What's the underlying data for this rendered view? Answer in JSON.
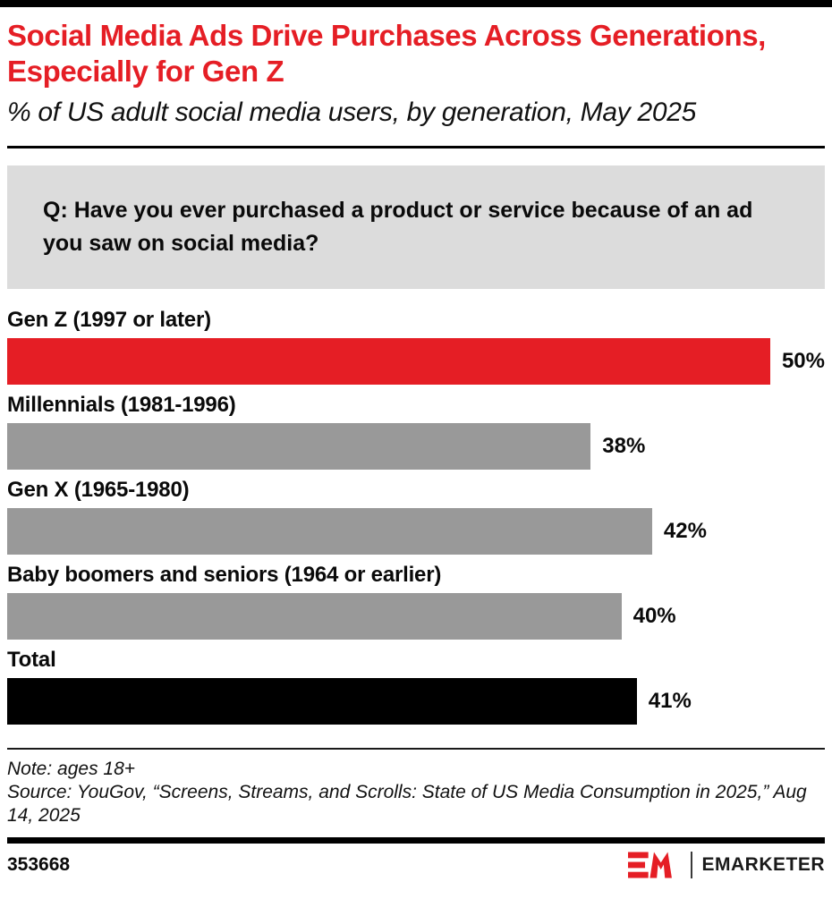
{
  "header": {
    "title": "Social Media Ads Drive Purchases Across Generations, Especially for Gen Z",
    "subtitle": "% of US adult social media users, by generation, May 2025"
  },
  "question": "Q: Have you ever purchased a product or service because of an ad you saw on social media?",
  "chart_data": {
    "type": "bar",
    "orientation": "horizontal",
    "title": "Social Media Ads Drive Purchases Across Generations, Especially for Gen Z",
    "subtitle": "% of US adult social media users, by generation, May 2025",
    "question": "Q: Have you ever purchased a product or service because of an ad you saw on social media?",
    "categories": [
      "Gen Z (1997 or later)",
      "Millennials (1981-1996)",
      "Gen X (1965-1980)",
      "Baby boomers and seniors (1964 or earlier)",
      "Total"
    ],
    "values": [
      50,
      38,
      42,
      40,
      41
    ],
    "value_labels": [
      "50%",
      "38%",
      "42%",
      "40%",
      "41%"
    ],
    "bar_colors": [
      "#e51e25",
      "#999999",
      "#999999",
      "#999999",
      "#000000"
    ],
    "value_suffix": "%",
    "xlim": [
      0,
      53.5
    ],
    "grid": false,
    "legend": "none",
    "xlabel": "",
    "ylabel": ""
  },
  "footnote": {
    "note": "Note: ages 18+",
    "source": "Source: YouGov, “Screens, Streams, and Scrolls: State of US Media Consumption in 2025,” Aug 14, 2025"
  },
  "footer": {
    "chart_id": "353668",
    "brand": "EMARKETER"
  },
  "colors": {
    "accent_red": "#e51e25",
    "bar_gray": "#999999",
    "bar_black": "#000000",
    "question_bg": "#dcdcdc",
    "rule_black": "#000000"
  }
}
